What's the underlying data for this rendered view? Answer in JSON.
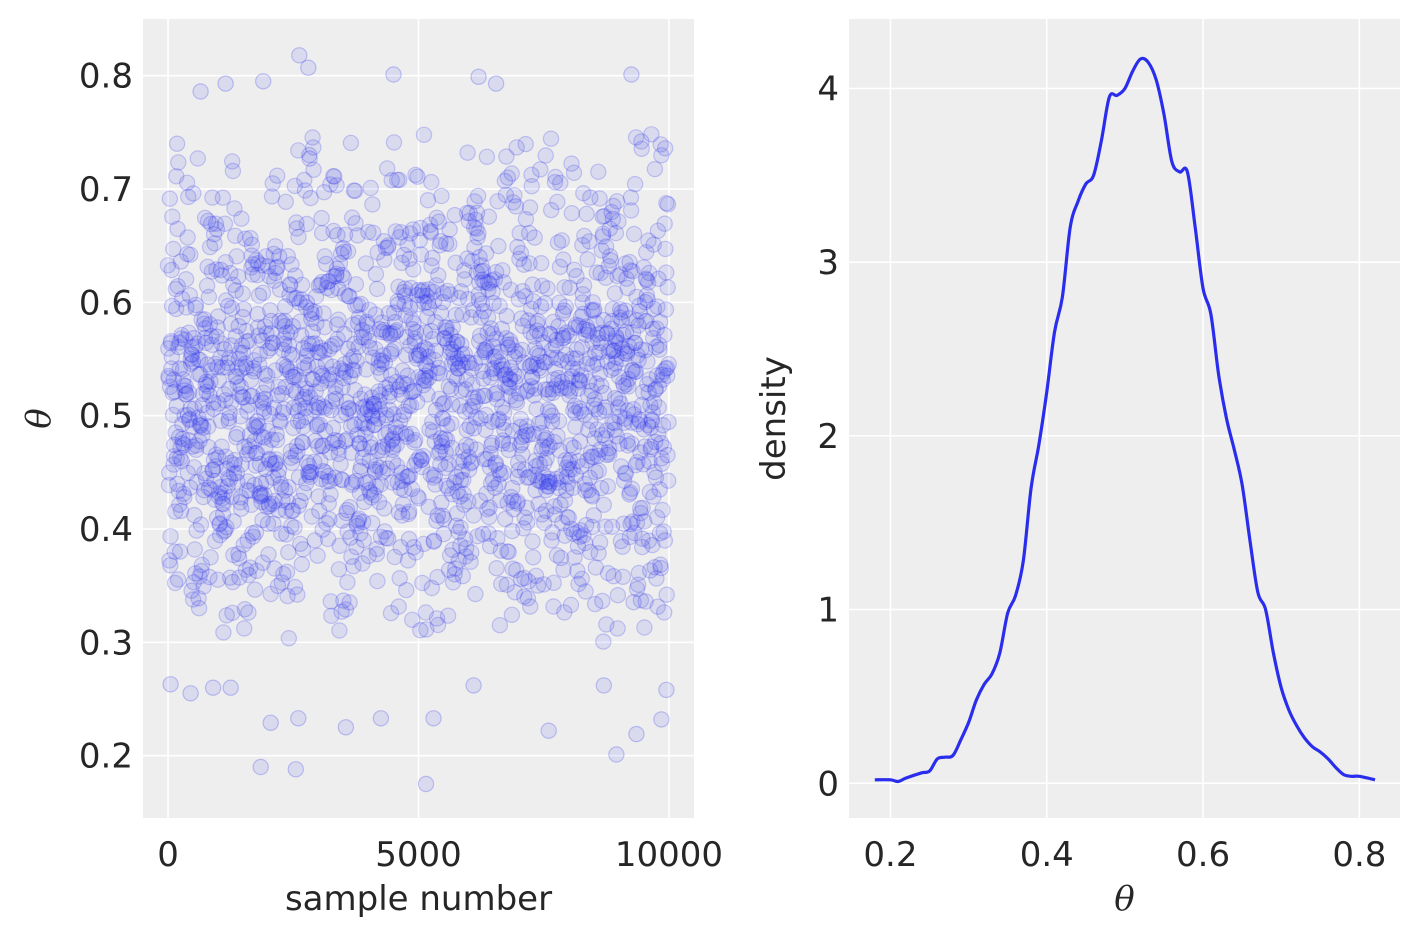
{
  "colors": {
    "accent": "#2a2eec",
    "panel_bg": "#eeeeee",
    "grid": "#ffffff",
    "text": "#262626"
  },
  "chart_data": [
    {
      "type": "scatter",
      "title": "",
      "xlabel": "sample number",
      "ylabel": "θ",
      "xlim": [
        -500,
        10500
      ],
      "ylim": [
        0.145,
        0.85
      ],
      "xticks": [
        0,
        5000,
        10000
      ],
      "yticks": [
        0.2,
        0.3,
        0.4,
        0.5,
        0.6,
        0.7,
        0.8
      ],
      "xtick_labels": [
        "0",
        "5000",
        "10000"
      ],
      "ytick_labels": [
        "0.2",
        "0.3",
        "0.4",
        "0.5",
        "0.6",
        "0.7",
        "0.8"
      ],
      "grid": true,
      "marker": "hollow-circle",
      "alpha": 0.1,
      "n_samples": 10000,
      "sample_distribution": {
        "kind": "normal",
        "mean": 0.52,
        "std": 0.1
      },
      "points": [
        {
          "x": 2620,
          "y": 0.818
        },
        {
          "x": 2800,
          "y": 0.807
        },
        {
          "x": 4500,
          "y": 0.801
        },
        {
          "x": 6200,
          "y": 0.799
        },
        {
          "x": 6550,
          "y": 0.793
        },
        {
          "x": 9250,
          "y": 0.801
        },
        {
          "x": 1150,
          "y": 0.793
        },
        {
          "x": 1900,
          "y": 0.795
        },
        {
          "x": 650,
          "y": 0.786
        },
        {
          "x": 5150,
          "y": 0.175
        },
        {
          "x": 1850,
          "y": 0.19
        },
        {
          "x": 2550,
          "y": 0.188
        },
        {
          "x": 2050,
          "y": 0.229
        },
        {
          "x": 8950,
          "y": 0.201
        },
        {
          "x": 9350,
          "y": 0.219
        },
        {
          "x": 3550,
          "y": 0.225
        },
        {
          "x": 4250,
          "y": 0.233
        },
        {
          "x": 5300,
          "y": 0.233
        },
        {
          "x": 7600,
          "y": 0.222
        },
        {
          "x": 9850,
          "y": 0.232
        },
        {
          "x": 2600,
          "y": 0.233
        },
        {
          "x": 50,
          "y": 0.263
        },
        {
          "x": 450,
          "y": 0.255
        },
        {
          "x": 900,
          "y": 0.26
        },
        {
          "x": 1250,
          "y": 0.26
        },
        {
          "x": 6100,
          "y": 0.262
        },
        {
          "x": 8700,
          "y": 0.262
        },
        {
          "x": 9950,
          "y": 0.258
        }
      ]
    },
    {
      "type": "line",
      "title": "",
      "xlabel": "θ",
      "ylabel": "density",
      "xlim": [
        0.147,
        0.852
      ],
      "ylim": [
        -0.2,
        4.4
      ],
      "xticks": [
        0.2,
        0.4,
        0.6,
        0.8
      ],
      "yticks": [
        0,
        1,
        2,
        3,
        4
      ],
      "xtick_labels": [
        "0.2",
        "0.4",
        "0.6",
        "0.8"
      ],
      "ytick_labels": [
        "0",
        "1",
        "2",
        "3",
        "4"
      ],
      "grid": true,
      "x": [
        0.18,
        0.2,
        0.21,
        0.22,
        0.24,
        0.25,
        0.26,
        0.27,
        0.28,
        0.29,
        0.3,
        0.31,
        0.32,
        0.33,
        0.34,
        0.35,
        0.36,
        0.37,
        0.38,
        0.39,
        0.4,
        0.41,
        0.42,
        0.43,
        0.44,
        0.45,
        0.46,
        0.47,
        0.48,
        0.49,
        0.5,
        0.51,
        0.52,
        0.53,
        0.54,
        0.55,
        0.56,
        0.57,
        0.58,
        0.59,
        0.6,
        0.61,
        0.62,
        0.63,
        0.64,
        0.65,
        0.66,
        0.67,
        0.68,
        0.69,
        0.7,
        0.71,
        0.72,
        0.73,
        0.74,
        0.75,
        0.76,
        0.77,
        0.78,
        0.79,
        0.8,
        0.82
      ],
      "y": [
        0.02,
        0.02,
        0.01,
        0.03,
        0.06,
        0.07,
        0.14,
        0.15,
        0.16,
        0.25,
        0.35,
        0.48,
        0.57,
        0.63,
        0.75,
        0.98,
        1.08,
        1.28,
        1.7,
        1.95,
        2.25,
        2.6,
        2.8,
        3.2,
        3.35,
        3.45,
        3.5,
        3.7,
        3.95,
        3.96,
        4.0,
        4.1,
        4.17,
        4.15,
        4.05,
        3.85,
        3.58,
        3.52,
        3.52,
        3.2,
        2.85,
        2.7,
        2.35,
        2.1,
        1.92,
        1.72,
        1.4,
        1.1,
        1.0,
        0.75,
        0.55,
        0.42,
        0.33,
        0.26,
        0.21,
        0.18,
        0.14,
        0.09,
        0.05,
        0.04,
        0.04,
        0.02
      ]
    }
  ]
}
